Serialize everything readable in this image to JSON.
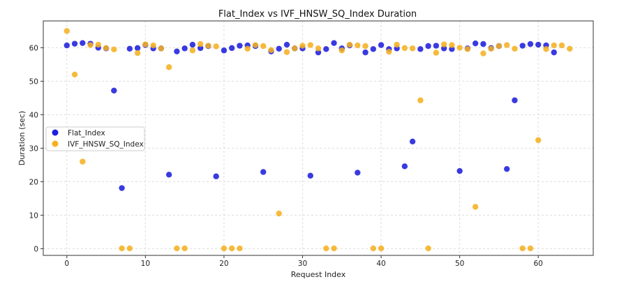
{
  "chart_data": {
    "type": "scatter",
    "title": "Flat_Index vs IVF_HNSW_SQ_Index Duration",
    "xlabel": "Request Index",
    "ylabel": "Duration (sec)",
    "xlim": [
      -3,
      67
    ],
    "ylim": [
      -2,
      68
    ],
    "xticks": [
      0,
      10,
      20,
      30,
      40,
      50,
      60
    ],
    "yticks": [
      0,
      10,
      20,
      30,
      40,
      50,
      60
    ],
    "grid": true,
    "legend_position": "middle-left",
    "series": [
      {
        "name": "Flat_Index",
        "color": "#1f1fdd",
        "x": [
          0,
          1,
          2,
          3,
          4,
          5,
          6,
          7,
          8,
          9,
          10,
          11,
          12,
          13,
          14,
          15,
          16,
          17,
          18,
          19,
          20,
          21,
          22,
          23,
          24,
          25,
          26,
          27,
          28,
          29,
          30,
          31,
          32,
          33,
          34,
          35,
          36,
          37,
          38,
          39,
          40,
          41,
          42,
          43,
          44,
          45,
          46,
          47,
          48,
          49,
          50,
          51,
          52,
          53,
          54,
          55,
          56,
          57,
          58,
          59,
          60,
          61,
          62
        ],
        "y": [
          60.7,
          61.2,
          61.4,
          61.2,
          60.0,
          59.8,
          47.2,
          18.1,
          59.7,
          59.9,
          60.8,
          59.8,
          59.8,
          22.1,
          58.9,
          59.8,
          60.9,
          59.9,
          60.5,
          21.6,
          59.2,
          59.9,
          60.6,
          60.7,
          60.5,
          22.9,
          58.9,
          59.7,
          60.9,
          59.8,
          59.8,
          21.8,
          58.6,
          59.6,
          61.4,
          59.8,
          60.7,
          22.7,
          58.6,
          59.6,
          60.8,
          59.6,
          59.8,
          24.6,
          32.0,
          59.6,
          60.5,
          60.6,
          59.8,
          59.6,
          23.2,
          59.8,
          61.3,
          61.1,
          59.9,
          60.5,
          23.8,
          44.3,
          60.6,
          61.1,
          60.9,
          60.7,
          58.6
        ]
      },
      {
        "name": "IVF_HNSW_SQ_Index",
        "color": "#f5b021",
        "x": [
          0,
          1,
          2,
          3,
          4,
          5,
          6,
          7,
          8,
          9,
          10,
          11,
          12,
          13,
          14,
          15,
          16,
          17,
          18,
          19,
          20,
          21,
          22,
          23,
          24,
          25,
          26,
          27,
          28,
          29,
          30,
          31,
          32,
          33,
          34,
          35,
          36,
          37,
          38,
          39,
          40,
          41,
          42,
          43,
          44,
          45,
          46,
          47,
          48,
          49,
          50,
          51,
          52,
          53,
          54,
          55,
          56,
          57,
          58,
          59,
          60,
          61,
          62,
          63,
          64
        ],
        "y": [
          65.0,
          52.0,
          26.0,
          60.8,
          60.9,
          59.9,
          59.5,
          0.1,
          0.1,
          58.4,
          61.0,
          60.7,
          59.8,
          54.2,
          0.1,
          0.1,
          59.2,
          61.1,
          60.6,
          60.4,
          0.1,
          0.1,
          0.1,
          59.7,
          60.8,
          60.5,
          59.3,
          10.5,
          58.7,
          59.8,
          60.6,
          60.8,
          59.8,
          0.1,
          0.1,
          59.2,
          60.9,
          60.7,
          60.5,
          0.1,
          0.1,
          58.8,
          60.9,
          59.9,
          59.8,
          44.3,
          0.1,
          58.5,
          61.0,
          60.8,
          60.0,
          59.6,
          12.5,
          58.3,
          59.7,
          60.5,
          60.8,
          59.7,
          0.1,
          0.1,
          32.4,
          59.6,
          60.7,
          60.7,
          59.7
        ]
      }
    ]
  }
}
